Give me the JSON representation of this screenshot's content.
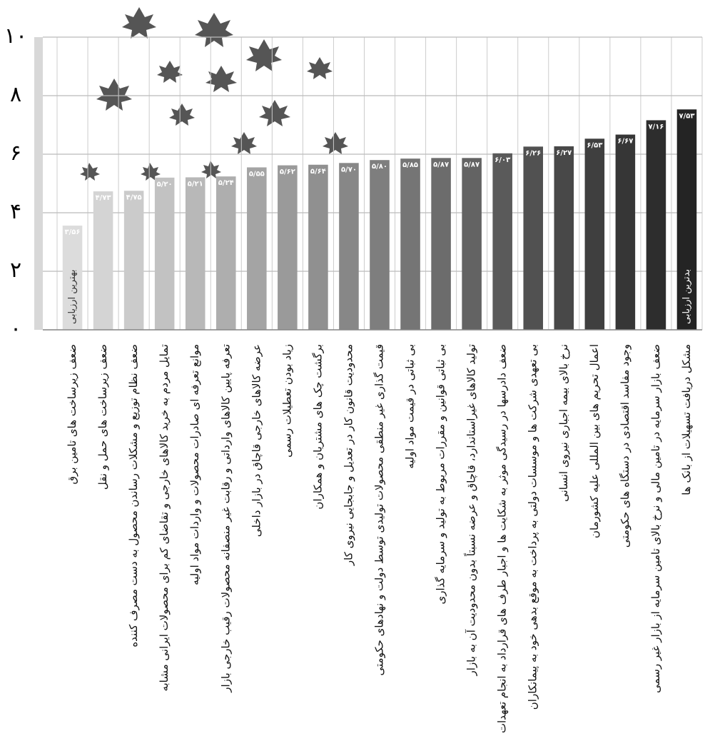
{
  "chart_data": {
    "type": "bar",
    "categories": [
      "ضعف زیرساخت های تامین برق",
      "ضعف زیرساخت های حمل و نقل",
      "ضعف نظام توزیع و مشکلات رساندن محصول به دست مصرف کننده",
      "تمایل مردم به خرید کالاهای خارجی و تقاضای کم برای محصولات ایرانی مشابه",
      "موانع تعرفه ای صادرات محصولات و واردات مواد اولیه",
      "تعرفه پایین کالاهای وارداتی و رقابت غیر منصفانه محصولات رقیب خارجی بازار",
      "عرضه کالاهای خارجی قاچاق در بازار داخلی",
      "زیاد بودن تعطیلات رسمی",
      "برگشت چک های مشتریان و همکاران",
      "محدودیت قانون کار در تعدیل و جابجایی نیروی کار",
      "قیمت گذاری غیر منطقی محصولات تولیدی توسط دولت و نهادهای حکومتی",
      "بی ثباتی در قیمت مواد اولیه",
      "بی ثباتی قوانین و مقررات مربوط به تولید و سرمایه گذاری",
      "تولید کالاهای غیراستاندارد، قاچاق و عرضه نسبتاً بدون محدودیت آن به بازار",
      "ضعف دادرسها در رسیدگی موثر به شکایت ها و اجبار طرف های قرارداد به انجام تعهدات",
      "بی تعهدی شرکت ها و موسسات دولتی به پرداخت به موقع بدهی خود به پیمانکاران",
      "نرخ بالای بیمه اجباری نیروی انسانی",
      "اعمال تحریم های بین المللی علیه کشورمان",
      "وجود مفاسد اقتصادی در دستگاه های حکومتی",
      "ضعف بازار سرمایه در تامین مالی و نرخ بالای تامین سرمایه از بازار غیر رسمی",
      "مشکل دریافت تسهیلات از بانک ها"
    ],
    "values": [
      3.56,
      4.73,
      4.75,
      5.2,
      5.21,
      5.24,
      5.55,
      5.62,
      5.64,
      5.7,
      5.8,
      5.85,
      5.87,
      5.87,
      6.03,
      6.26,
      6.27,
      6.53,
      6.67,
      7.16,
      7.53
    ],
    "value_labels": [
      "۳/۵۶",
      "۴/۷۳",
      "۴/۷۵",
      "۵/۲۰",
      "۵/۲۱",
      "۵/۲۴",
      "۵/۵۵",
      "۵/۶۲",
      "۵/۶۴",
      "۵/۷۰",
      "۵/۸۰",
      "۵/۸۵",
      "۵/۸۷",
      "۵/۸۷",
      "۶/۰۳",
      "۶/۲۶",
      "۶/۲۷",
      "۶/۵۳",
      "۶/۶۷",
      "۷/۱۶",
      "۷/۵۳"
    ],
    "colors": [
      "#dcdcdc",
      "#d4d4d4",
      "#cbcbcb",
      "#c2c2c2",
      "#b8b8b8",
      "#aeaeae",
      "#a4a4a4",
      "#9a9a9a",
      "#909090",
      "#878787",
      "#7e7e7e",
      "#757575",
      "#6c6c6c",
      "#636363",
      "#5a5a5a",
      "#515151",
      "#484848",
      "#3f3f3f",
      "#363636",
      "#2d2d2d",
      "#242424"
    ],
    "annotations": [
      {
        "text": "بهترین ارزیابی",
        "index": 0
      },
      {
        "text": "بدترین ارزیابی",
        "index": 20
      }
    ],
    "ylim": [
      0,
      10
    ],
    "yticks": [
      {
        "value": 0,
        "label": "۰"
      },
      {
        "value": 2,
        "label": "۲"
      },
      {
        "value": 4,
        "label": "۴"
      },
      {
        "value": 6,
        "label": "۶"
      },
      {
        "value": 8,
        "label": "۸"
      },
      {
        "value": 10,
        "label": "۱۰"
      }
    ],
    "grid": true
  }
}
